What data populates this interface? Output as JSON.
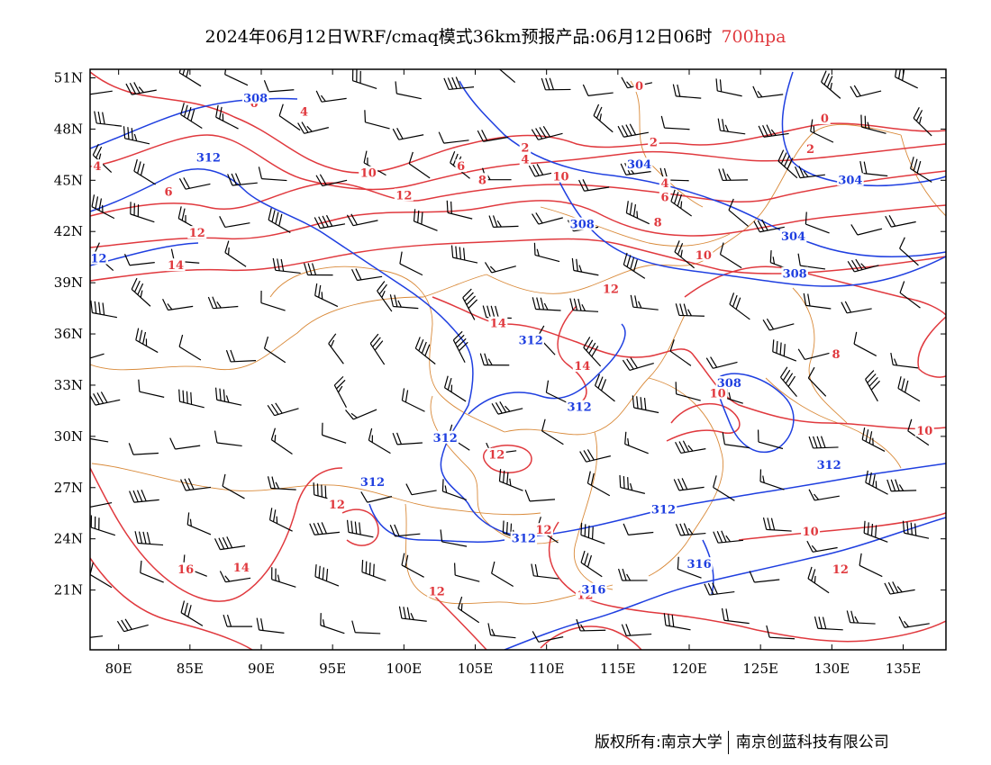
{
  "title": {
    "main": "2024年06月12日WRF/cmaq模式36km预报产品:06月12日06时",
    "level": "700hpa"
  },
  "footer": {
    "left": "版权所有:南京大学",
    "right": "南京创蓝科技有限公司"
  },
  "map": {
    "lon_range": [
      78,
      138
    ],
    "lat_range": [
      17.5,
      51.5
    ],
    "lon_ticks": [
      "80E",
      "85E",
      "90E",
      "95E",
      "100E",
      "105E",
      "110E",
      "115E",
      "120E",
      "125E",
      "130E",
      "135E"
    ],
    "lon_values": [
      80,
      85,
      90,
      95,
      100,
      105,
      110,
      115,
      120,
      125,
      130,
      135
    ],
    "lat_ticks": [
      "21N",
      "24N",
      "27N",
      "30N",
      "33N",
      "36N",
      "39N",
      "42N",
      "45N",
      "48N",
      "51N"
    ],
    "lat_values": [
      21,
      24,
      27,
      30,
      33,
      36,
      39,
      42,
      45,
      48,
      51
    ],
    "colors": {
      "temperature": "#e0393e",
      "height": "#1f3fe0",
      "boundary": "#d98a3a",
      "wind": "#000000"
    },
    "contour_labels": [
      {
        "text": "0",
        "lon": 116.5,
        "lat": 50.5,
        "kind": "temperature"
      },
      {
        "text": "0",
        "lon": 129.5,
        "lat": 48.6,
        "kind": "temperature"
      },
      {
        "text": "2",
        "lon": 108.5,
        "lat": 46.9,
        "kind": "temperature"
      },
      {
        "text": "2",
        "lon": 117.5,
        "lat": 47.2,
        "kind": "temperature"
      },
      {
        "text": "2",
        "lon": 128.5,
        "lat": 46.8,
        "kind": "temperature"
      },
      {
        "text": "4",
        "lon": 108.5,
        "lat": 46.2,
        "kind": "temperature"
      },
      {
        "text": "4",
        "lon": 78.5,
        "lat": 45.8,
        "kind": "temperature"
      },
      {
        "text": "4",
        "lon": 118.3,
        "lat": 44.8,
        "kind": "temperature"
      },
      {
        "text": "4",
        "lon": 93,
        "lat": 49,
        "kind": "temperature"
      },
      {
        "text": "6",
        "lon": 89.5,
        "lat": 49.5,
        "kind": "temperature"
      },
      {
        "text": "6",
        "lon": 83.5,
        "lat": 44.3,
        "kind": "temperature"
      },
      {
        "text": "6",
        "lon": 104,
        "lat": 45.8,
        "kind": "temperature"
      },
      {
        "text": "6",
        "lon": 118.3,
        "lat": 44.0,
        "kind": "temperature"
      },
      {
        "text": "8",
        "lon": 105.5,
        "lat": 45.0,
        "kind": "temperature"
      },
      {
        "text": "8",
        "lon": 117.8,
        "lat": 42.5,
        "kind": "temperature"
      },
      {
        "text": "8",
        "lon": 130.3,
        "lat": 34.8,
        "kind": "temperature"
      },
      {
        "text": "10",
        "lon": 97.5,
        "lat": 45.4,
        "kind": "temperature"
      },
      {
        "text": "10",
        "lon": 111,
        "lat": 45.2,
        "kind": "temperature"
      },
      {
        "text": "10",
        "lon": 121,
        "lat": 40.6,
        "kind": "temperature"
      },
      {
        "text": "10",
        "lon": 122,
        "lat": 32.5,
        "kind": "temperature"
      },
      {
        "text": "10",
        "lon": 128.5,
        "lat": 24.4,
        "kind": "temperature"
      },
      {
        "text": "10",
        "lon": 136.5,
        "lat": 30.3,
        "kind": "temperature"
      },
      {
        "text": "12",
        "lon": 100,
        "lat": 44.1,
        "kind": "temperature"
      },
      {
        "text": "12",
        "lon": 85.5,
        "lat": 41.9,
        "kind": "temperature"
      },
      {
        "text": "12",
        "lon": 114.5,
        "lat": 38.6,
        "kind": "temperature"
      },
      {
        "text": "12",
        "lon": 106.5,
        "lat": 28.9,
        "kind": "temperature"
      },
      {
        "text": "12",
        "lon": 95.3,
        "lat": 26.0,
        "kind": "temperature"
      },
      {
        "text": "12",
        "lon": 109.8,
        "lat": 24.5,
        "kind": "temperature"
      },
      {
        "text": "12",
        "lon": 102.3,
        "lat": 20.9,
        "kind": "temperature"
      },
      {
        "text": "12",
        "lon": 112.7,
        "lat": 20.7,
        "kind": "temperature"
      },
      {
        "text": "12",
        "lon": 130.6,
        "lat": 22.2,
        "kind": "temperature"
      },
      {
        "text": "14",
        "lon": 84,
        "lat": 40.0,
        "kind": "temperature"
      },
      {
        "text": "14",
        "lon": 106.6,
        "lat": 36.6,
        "kind": "temperature"
      },
      {
        "text": "14",
        "lon": 112.5,
        "lat": 34.1,
        "kind": "temperature"
      },
      {
        "text": "14",
        "lon": 88.6,
        "lat": 22.3,
        "kind": "temperature"
      },
      {
        "text": "16",
        "lon": 84.7,
        "lat": 22.2,
        "kind": "temperature"
      },
      {
        "text": "308",
        "lon": 89.6,
        "lat": 49.8,
        "kind": "height"
      },
      {
        "text": "312",
        "lon": 86.3,
        "lat": 46.3,
        "kind": "height"
      },
      {
        "text": "12",
        "lon": 78.6,
        "lat": 40.4,
        "kind": "height"
      },
      {
        "text": "304",
        "lon": 116.5,
        "lat": 45.9,
        "kind": "height"
      },
      {
        "text": "304",
        "lon": 131.3,
        "lat": 45.0,
        "kind": "height"
      },
      {
        "text": "304",
        "lon": 127.3,
        "lat": 41.7,
        "kind": "height"
      },
      {
        "text": "308",
        "lon": 112.5,
        "lat": 42.4,
        "kind": "height"
      },
      {
        "text": "308",
        "lon": 127.4,
        "lat": 39.5,
        "kind": "height"
      },
      {
        "text": "308",
        "lon": 122.8,
        "lat": 33.1,
        "kind": "height"
      },
      {
        "text": "312",
        "lon": 108.9,
        "lat": 35.6,
        "kind": "height"
      },
      {
        "text": "312",
        "lon": 112.3,
        "lat": 31.7,
        "kind": "height"
      },
      {
        "text": "312",
        "lon": 102.9,
        "lat": 29.9,
        "kind": "height"
      },
      {
        "text": "312",
        "lon": 97.8,
        "lat": 27.3,
        "kind": "height"
      },
      {
        "text": "312",
        "lon": 108.4,
        "lat": 24.0,
        "kind": "height"
      },
      {
        "text": "312",
        "lon": 118.2,
        "lat": 25.7,
        "kind": "height"
      },
      {
        "text": "312",
        "lon": 129.8,
        "lat": 28.3,
        "kind": "height"
      },
      {
        "text": "316",
        "lon": 120.7,
        "lat": 22.5,
        "kind": "height"
      },
      {
        "text": "316",
        "lon": 113.3,
        "lat": 21.0,
        "kind": "height"
      }
    ]
  }
}
